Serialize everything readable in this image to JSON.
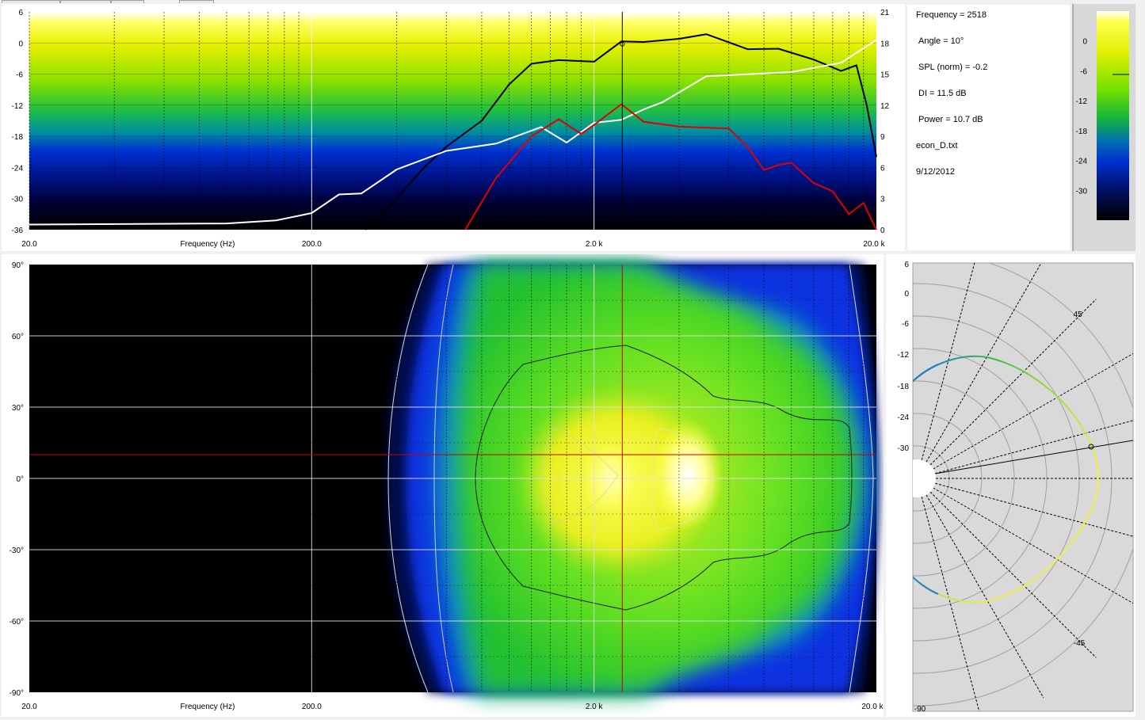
{
  "info": {
    "frequency": "Frequency = 2518",
    "angle": "Angle = 10°",
    "spl": "SPL (norm) = -0.2",
    "di": "DI = 11.5 dB",
    "power": "Power = 10.7 dB",
    "file": "econ_D.txt",
    "date": "9/12/2012"
  },
  "colors": {
    "on_axis": "#000000",
    "di": "#ffffff",
    "power": "#e00000",
    "cursor": "#cc0000",
    "grid": "#ffffff"
  },
  "chart_data": [
    {
      "type": "line",
      "xlabel": "Frequency (Hz)",
      "x_scale": "log",
      "xlim": [
        20,
        20000
      ],
      "x_ticks": [
        "20.0",
        "200.0",
        "2.0 k",
        "20.0 k"
      ],
      "ylim": [
        -36,
        6
      ],
      "y_ticks": [
        "6",
        "0",
        "-6",
        "-12",
        "-18",
        "-24",
        "-30",
        "-36"
      ],
      "y2lim": [
        0,
        21
      ],
      "y2_ticks": [
        "21",
        "18",
        "15",
        "12",
        "9",
        "6",
        "3",
        "0"
      ],
      "cursor_frequency": 2518,
      "series": [
        {
          "axis": "left",
          "color": "#000000",
          "points": [
            [
              310,
              -36
            ],
            [
              400,
              -30
            ],
            [
              500,
              -24
            ],
            [
              600,
              -20
            ],
            [
              800,
              -15
            ],
            [
              1000,
              -8
            ],
            [
              1200,
              -4
            ],
            [
              1500,
              -3.3
            ],
            [
              2000,
              -3.6
            ],
            [
              2500,
              0.3
            ],
            [
              3000,
              0.2
            ],
            [
              4000,
              0.8
            ],
            [
              5000,
              1.7
            ],
            [
              7000,
              -1.2
            ],
            [
              9000,
              -1.1
            ],
            [
              12000,
              -3.2
            ],
            [
              15000,
              -5.4
            ],
            [
              17000,
              -4.3
            ],
            [
              18500,
              -12
            ],
            [
              20000,
              -22
            ]
          ]
        },
        {
          "axis": "right",
          "color": "#ffffff",
          "points": [
            [
              20,
              0.5
            ],
            [
              100,
              0.6
            ],
            [
              150,
              0.9
            ],
            [
              200,
              1.6
            ],
            [
              250,
              3.4
            ],
            [
              300,
              3.5
            ],
            [
              400,
              5.8
            ],
            [
              600,
              7.6
            ],
            [
              900,
              8.3
            ],
            [
              1300,
              9.9
            ],
            [
              1600,
              8.4
            ],
            [
              2000,
              10.3
            ],
            [
              2500,
              10.6
            ],
            [
              3000,
              11.6
            ],
            [
              3500,
              12.3
            ],
            [
              5000,
              14.8
            ],
            [
              10000,
              15.2
            ],
            [
              15000,
              16.1
            ],
            [
              20000,
              18.3
            ]
          ]
        },
        {
          "axis": "left",
          "color": "#e00000",
          "points": [
            [
              700,
              -36
            ],
            [
              900,
              -26
            ],
            [
              1200,
              -18
            ],
            [
              1500,
              -14.7
            ],
            [
              1800,
              -17.5
            ],
            [
              2000,
              -15.8
            ],
            [
              2500,
              -11.8
            ],
            [
              3000,
              -15.2
            ],
            [
              4000,
              -16.1
            ],
            [
              6000,
              -16.5
            ],
            [
              7000,
              -20
            ],
            [
              8000,
              -24.5
            ],
            [
              9000,
              -23.5
            ],
            [
              10000,
              -23.1
            ],
            [
              12000,
              -27
            ],
            [
              14000,
              -28.6
            ],
            [
              16000,
              -33
            ],
            [
              18000,
              -30.8
            ],
            [
              20000,
              -36
            ]
          ]
        }
      ]
    },
    {
      "type": "heatmap",
      "xlabel": "Frequency (Hz)",
      "x_scale": "log",
      "xlim": [
        20,
        20000
      ],
      "x_ticks": [
        "20.0",
        "200.0",
        "2.0 k",
        "20.0 k"
      ],
      "ylim": [
        -90,
        90
      ],
      "y_ticks": [
        "90°",
        "60°",
        "30°",
        "0°",
        "-30°",
        "-60°",
        "-90°"
      ],
      "cursor_frequency": 2518,
      "cursor_angle": 10,
      "zlim": [
        -36,
        6
      ]
    },
    {
      "type": "line",
      "subtype": "polar",
      "r_ticks": [
        "6",
        "0",
        "-6",
        "-12",
        "-18",
        "-24",
        "-30"
      ],
      "angle_labels": [
        "45",
        "-45",
        "-90"
      ],
      "cursor_angle": 10
    },
    {
      "type": "colorbar",
      "ticks": [
        "0",
        "-6",
        "-12",
        "-18",
        "-24",
        "-30"
      ],
      "zlim": [
        -36,
        6
      ]
    }
  ]
}
